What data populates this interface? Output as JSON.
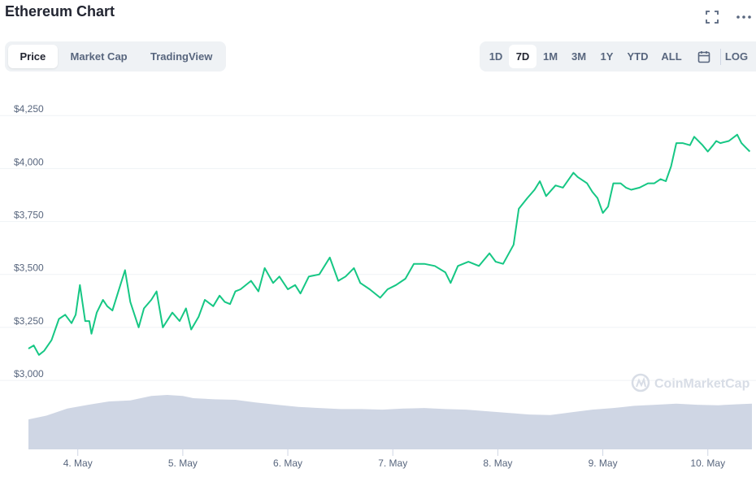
{
  "header": {
    "title": "Ethereum Chart",
    "fullscreen_icon": "fullscreen-icon",
    "more_icon": "more-icon"
  },
  "tabs": [
    {
      "label": "Price",
      "active": true
    },
    {
      "label": "Market Cap",
      "active": false
    },
    {
      "label": "TradingView",
      "active": false
    }
  ],
  "ranges": [
    {
      "label": "1D",
      "active": false
    },
    {
      "label": "7D",
      "active": true
    },
    {
      "label": "1M",
      "active": false
    },
    {
      "label": "3M",
      "active": false
    },
    {
      "label": "1Y",
      "active": false
    },
    {
      "label": "YTD",
      "active": false
    },
    {
      "label": "ALL",
      "active": false
    }
  ],
  "calendar_icon": "calendar-icon",
  "log_label": "LOG",
  "watermark": "CoinMarketCap",
  "colors": {
    "line": "#16c784",
    "volume": "#cfd6e4",
    "grid": "#eff2f5",
    "axis_text": "#58667e"
  },
  "chart_data": {
    "type": "line",
    "title": "",
    "ylabel": "",
    "xlabel": "",
    "ylim": [
      2985,
      4270
    ],
    "yticks": [
      3000,
      3250,
      3500,
      3750,
      4000,
      4250
    ],
    "ytick_labels": [
      "$3,000",
      "$3,250",
      "$3,500",
      "$3,750",
      "$4,000",
      "$4,250"
    ],
    "xlim": [
      3.53,
      10.42
    ],
    "xticks": [
      4,
      5,
      6,
      7,
      8,
      9,
      10
    ],
    "xtick_labels": [
      "4. May",
      "5. May",
      "6. May",
      "7. May",
      "8. May",
      "9. May",
      "10. May"
    ],
    "grid": true,
    "series": [
      {
        "x": [
          3.53,
          3.58,
          3.63,
          3.68,
          3.75,
          3.82,
          3.88,
          3.94,
          3.98,
          4.02,
          4.07,
          4.11,
          4.13,
          4.18,
          4.24,
          4.28,
          4.33,
          4.38,
          4.45,
          4.5,
          4.58,
          4.63,
          4.7,
          4.75,
          4.81,
          4.9,
          4.97,
          5.03,
          5.08,
          5.15,
          5.21,
          5.29,
          5.35,
          5.4,
          5.45,
          5.5,
          5.55,
          5.65,
          5.72,
          5.78,
          5.86,
          5.92,
          6.0,
          6.07,
          6.12,
          6.2,
          6.3,
          6.4,
          6.48,
          6.55,
          6.63,
          6.69,
          6.78,
          6.88,
          6.95,
          7.03,
          7.12,
          7.2,
          7.3,
          7.4,
          7.5,
          7.55,
          7.62,
          7.72,
          7.82,
          7.92,
          7.98,
          8.05,
          8.15,
          8.2,
          8.28,
          8.35,
          8.4,
          8.46,
          8.55,
          8.62,
          8.72,
          8.76,
          8.85,
          8.9,
          8.95,
          9.0,
          9.05,
          9.1,
          9.17,
          9.22,
          9.27,
          9.35,
          9.43,
          9.49,
          9.55,
          9.6,
          9.65,
          9.7,
          9.76,
          9.83,
          9.87,
          9.95,
          10.0,
          10.05,
          10.08,
          10.12,
          10.2,
          10.28,
          10.32,
          10.36,
          10.4
        ],
        "y": [
          3150,
          3165,
          3120,
          3140,
          3190,
          3290,
          3310,
          3270,
          3310,
          3450,
          3280,
          3280,
          3220,
          3320,
          3380,
          3350,
          3330,
          3410,
          3520,
          3370,
          3250,
          3340,
          3380,
          3420,
          3250,
          3320,
          3280,
          3340,
          3240,
          3300,
          3380,
          3350,
          3400,
          3370,
          3360,
          3420,
          3430,
          3470,
          3420,
          3530,
          3460,
          3490,
          3430,
          3450,
          3410,
          3490,
          3500,
          3580,
          3470,
          3490,
          3530,
          3460,
          3430,
          3390,
          3430,
          3450,
          3480,
          3550,
          3550,
          3540,
          3510,
          3460,
          3540,
          3560,
          3540,
          3600,
          3560,
          3550,
          3640,
          3810,
          3860,
          3900,
          3940,
          3870,
          3920,
          3910,
          3980,
          3960,
          3930,
          3890,
          3860,
          3790,
          3820,
          3930,
          3930,
          3910,
          3900,
          3910,
          3930,
          3930,
          3950,
          3940,
          4010,
          4120,
          4120,
          4110,
          4150,
          4110,
          4080,
          4110,
          4130,
          4120,
          4130,
          4160,
          4120,
          4100,
          4080
        ],
        "name": ""
      }
    ],
    "volume": {
      "x": [
        3.53,
        3.7,
        3.9,
        4.1,
        4.3,
        4.5,
        4.7,
        4.85,
        5.0,
        5.1,
        5.3,
        5.5,
        5.7,
        5.9,
        6.1,
        6.3,
        6.5,
        6.7,
        6.9,
        7.1,
        7.3,
        7.5,
        7.7,
        7.9,
        8.1,
        8.3,
        8.5,
        8.7,
        8.9,
        9.1,
        9.3,
        9.5,
        9.7,
        9.9,
        10.1,
        10.3,
        10.42
      ],
      "y": [
        0.55,
        0.62,
        0.75,
        0.82,
        0.88,
        0.9,
        0.98,
        1.0,
        0.98,
        0.94,
        0.92,
        0.91,
        0.86,
        0.82,
        0.78,
        0.76,
        0.74,
        0.74,
        0.73,
        0.75,
        0.76,
        0.74,
        0.73,
        0.7,
        0.67,
        0.64,
        0.63,
        0.68,
        0.73,
        0.76,
        0.8,
        0.82,
        0.84,
        0.82,
        0.81,
        0.83,
        0.84
      ]
    }
  }
}
